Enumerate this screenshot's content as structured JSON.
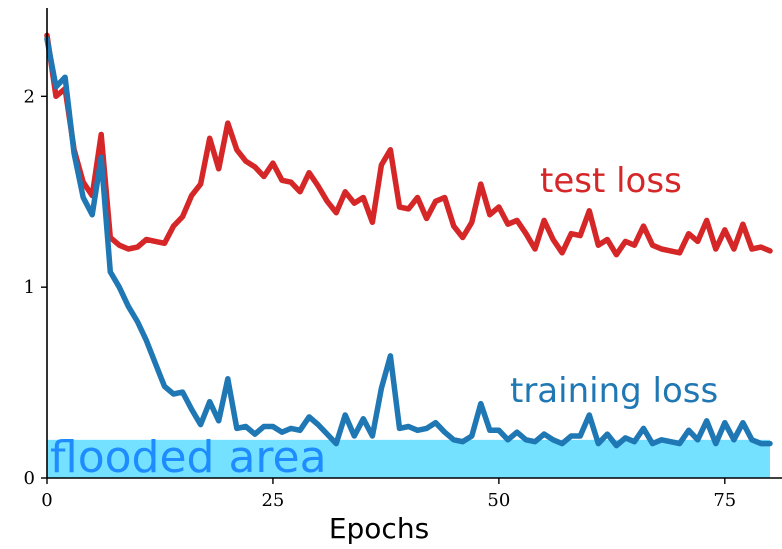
{
  "chart_data": {
    "type": "line",
    "xlabel": "Epochs",
    "ylabel": "",
    "title": "",
    "xlim": [
      0,
      80
    ],
    "ylim": [
      0,
      2.4
    ],
    "xticks": [
      0,
      25,
      50,
      75
    ],
    "yticks": [
      0,
      1,
      2
    ],
    "grid": false,
    "legend": "none",
    "flood": {
      "level": 0.2,
      "label": "flooded area",
      "color": "#73e1ff",
      "text_color": "#1e8cff"
    },
    "series": [
      {
        "name": "test loss",
        "color": "#d62728",
        "x": [
          0,
          1,
          2,
          3,
          4,
          5,
          6,
          7,
          8,
          9,
          10,
          11,
          12,
          13,
          14,
          15,
          16,
          17,
          18,
          19,
          20,
          21,
          22,
          23,
          24,
          25,
          26,
          27,
          28,
          29,
          30,
          31,
          32,
          33,
          34,
          35,
          36,
          37,
          38,
          39,
          40,
          41,
          42,
          43,
          44,
          45,
          46,
          47,
          48,
          49,
          50,
          51,
          52,
          53,
          54,
          55,
          56,
          57,
          58,
          59,
          60,
          61,
          62,
          63,
          64,
          65,
          66,
          67,
          68,
          69,
          70,
          71,
          72,
          73,
          74,
          75,
          76,
          77,
          78,
          79,
          80
        ],
        "y": [
          2.32,
          2.0,
          2.04,
          1.72,
          1.55,
          1.48,
          1.8,
          1.26,
          1.22,
          1.2,
          1.21,
          1.25,
          1.24,
          1.23,
          1.32,
          1.37,
          1.48,
          1.54,
          1.78,
          1.62,
          1.86,
          1.72,
          1.66,
          1.63,
          1.58,
          1.65,
          1.56,
          1.55,
          1.5,
          1.6,
          1.53,
          1.45,
          1.39,
          1.5,
          1.44,
          1.47,
          1.34,
          1.64,
          1.72,
          1.42,
          1.41,
          1.47,
          1.36,
          1.45,
          1.47,
          1.32,
          1.26,
          1.34,
          1.54,
          1.38,
          1.42,
          1.33,
          1.35,
          1.28,
          1.2,
          1.35,
          1.25,
          1.18,
          1.28,
          1.27,
          1.4,
          1.22,
          1.25,
          1.17,
          1.24,
          1.22,
          1.32,
          1.22,
          1.2,
          1.19,
          1.18,
          1.28,
          1.24,
          1.35,
          1.2,
          1.3,
          1.2,
          1.33,
          1.2,
          1.21,
          1.19
        ],
        "label_text": "test loss"
      },
      {
        "name": "training loss",
        "color": "#1f77b4",
        "x": [
          0,
          1,
          2,
          3,
          4,
          5,
          6,
          7,
          8,
          9,
          10,
          11,
          12,
          13,
          14,
          15,
          16,
          17,
          18,
          19,
          20,
          21,
          22,
          23,
          24,
          25,
          26,
          27,
          28,
          29,
          30,
          31,
          32,
          33,
          34,
          35,
          36,
          37,
          38,
          39,
          40,
          41,
          42,
          43,
          44,
          45,
          46,
          47,
          48,
          49,
          50,
          51,
          52,
          53,
          54,
          55,
          56,
          57,
          58,
          59,
          60,
          61,
          62,
          63,
          64,
          65,
          66,
          67,
          68,
          69,
          70,
          71,
          72,
          73,
          74,
          75,
          76,
          77,
          78,
          79,
          80
        ],
        "y": [
          2.3,
          2.05,
          2.1,
          1.7,
          1.47,
          1.38,
          1.68,
          1.08,
          1.0,
          0.9,
          0.82,
          0.72,
          0.6,
          0.48,
          0.44,
          0.45,
          0.36,
          0.28,
          0.4,
          0.3,
          0.52,
          0.26,
          0.27,
          0.23,
          0.27,
          0.27,
          0.24,
          0.26,
          0.25,
          0.32,
          0.28,
          0.23,
          0.18,
          0.33,
          0.22,
          0.31,
          0.22,
          0.47,
          0.64,
          0.26,
          0.27,
          0.25,
          0.26,
          0.29,
          0.24,
          0.2,
          0.19,
          0.22,
          0.39,
          0.25,
          0.25,
          0.2,
          0.24,
          0.2,
          0.19,
          0.23,
          0.2,
          0.18,
          0.22,
          0.22,
          0.33,
          0.18,
          0.23,
          0.17,
          0.21,
          0.19,
          0.26,
          0.18,
          0.2,
          0.19,
          0.18,
          0.25,
          0.2,
          0.3,
          0.18,
          0.29,
          0.2,
          0.29,
          0.2,
          0.18,
          0.18
        ],
        "label_text": "training loss"
      }
    ]
  }
}
